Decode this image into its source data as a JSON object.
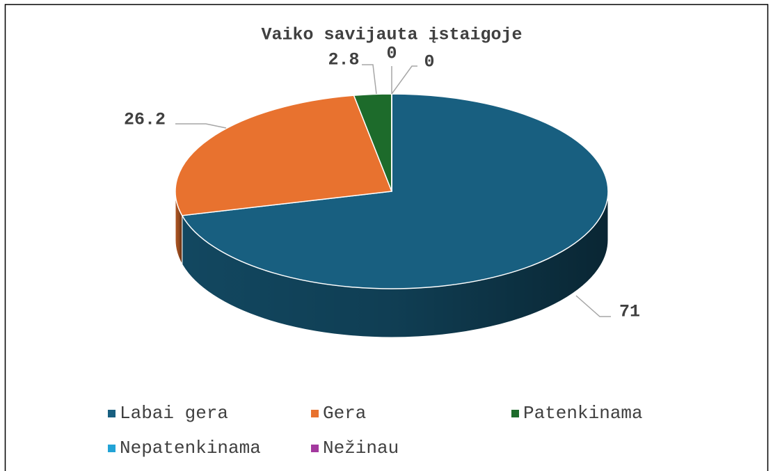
{
  "chart_data": {
    "type": "pie",
    "title": "Vaiko savijauta įstaigoje",
    "categories": [
      "Labai gera",
      "Gera",
      "Patenkinama",
      "Nepatenkinama",
      "Nežinau"
    ],
    "values": [
      71,
      26.2,
      2.8,
      0,
      0
    ],
    "colors": [
      "#185f80",
      "#e8722f",
      "#1d6b2b",
      "#22a3d6",
      "#a3399e"
    ],
    "legend": "bottom"
  }
}
